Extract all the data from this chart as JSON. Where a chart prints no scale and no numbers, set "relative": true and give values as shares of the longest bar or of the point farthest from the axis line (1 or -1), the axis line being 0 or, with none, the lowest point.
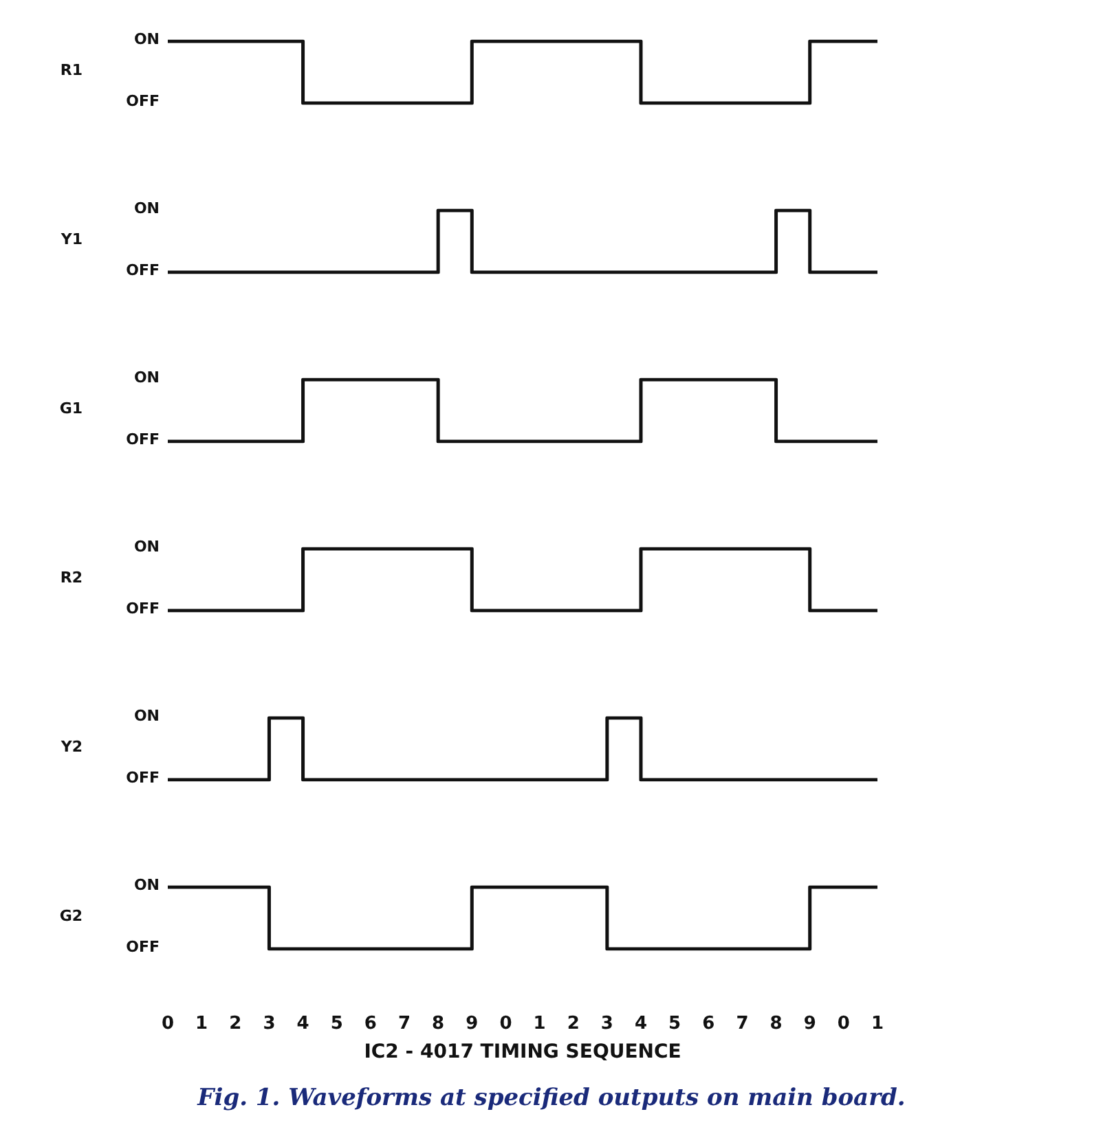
{
  "chart_data": [
    {
      "type": "step",
      "relative": true,
      "ylabel": "R1",
      "categories": [
        "0",
        "1",
        "2",
        "3",
        "4",
        "5",
        "6",
        "7",
        "8",
        "9",
        "0",
        "1",
        "2",
        "3",
        "4",
        "5",
        "6",
        "7",
        "8",
        "9",
        "0",
        "1"
      ],
      "tick_labels": false,
      "annotations": [
        "ON",
        "OFF"
      ],
      "series": [
        {
          "color": "#111111",
          "values": [
            1,
            1,
            1,
            1,
            0,
            0,
            0,
            0,
            0,
            1,
            1,
            1,
            1,
            1,
            0,
            0,
            0,
            0,
            0,
            1,
            1,
            1
          ]
        }
      ]
    },
    {
      "type": "step",
      "relative": true,
      "ylabel": "Y1",
      "categories": [
        "0",
        "1",
        "2",
        "3",
        "4",
        "5",
        "6",
        "7",
        "8",
        "9",
        "0",
        "1",
        "2",
        "3",
        "4",
        "5",
        "6",
        "7",
        "8",
        "9",
        "0",
        "1"
      ],
      "tick_labels": false,
      "annotations": [
        "ON",
        "OFF"
      ],
      "series": [
        {
          "color": "#111111",
          "values": [
            0,
            0,
            0,
            0,
            0,
            0,
            0,
            0,
            1,
            0,
            0,
            0,
            0,
            0,
            0,
            0,
            0,
            0,
            1,
            0,
            0,
            0
          ]
        }
      ]
    },
    {
      "type": "step",
      "relative": true,
      "ylabel": "G1",
      "categories": [
        "0",
        "1",
        "2",
        "3",
        "4",
        "5",
        "6",
        "7",
        "8",
        "9",
        "0",
        "1",
        "2",
        "3",
        "4",
        "5",
        "6",
        "7",
        "8",
        "9",
        "0",
        "1"
      ],
      "tick_labels": false,
      "annotations": [
        "ON",
        "OFF"
      ],
      "series": [
        {
          "color": "#111111",
          "values": [
            0,
            0,
            0,
            0,
            1,
            1,
            1,
            1,
            0,
            0,
            0,
            0,
            0,
            0,
            1,
            1,
            1,
            1,
            0,
            0,
            0,
            0
          ]
        }
      ]
    },
    {
      "type": "step",
      "relative": true,
      "ylabel": "R2",
      "categories": [
        "0",
        "1",
        "2",
        "3",
        "4",
        "5",
        "6",
        "7",
        "8",
        "9",
        "0",
        "1",
        "2",
        "3",
        "4",
        "5",
        "6",
        "7",
        "8",
        "9",
        "0",
        "1"
      ],
      "tick_labels": false,
      "annotations": [
        "ON",
        "OFF"
      ],
      "series": [
        {
          "color": "#111111",
          "values": [
            0,
            0,
            0,
            0,
            1,
            1,
            1,
            1,
            1,
            0,
            0,
            0,
            0,
            0,
            1,
            1,
            1,
            1,
            1,
            0,
            0,
            0
          ]
        }
      ]
    },
    {
      "type": "step",
      "relative": true,
      "ylabel": "Y2",
      "categories": [
        "0",
        "1",
        "2",
        "3",
        "4",
        "5",
        "6",
        "7",
        "8",
        "9",
        "0",
        "1",
        "2",
        "3",
        "4",
        "5",
        "6",
        "7",
        "8",
        "9",
        "0",
        "1"
      ],
      "tick_labels": false,
      "annotations": [
        "ON",
        "OFF"
      ],
      "series": [
        {
          "color": "#111111",
          "values": [
            0,
            0,
            0,
            1,
            0,
            0,
            0,
            0,
            0,
            0,
            0,
            0,
            0,
            1,
            0,
            0,
            0,
            0,
            0,
            0,
            0,
            0
          ]
        }
      ]
    },
    {
      "type": "step",
      "relative": true,
      "ylabel": "G2",
      "xlabel": "IC2 - 4017 TIMING SEQUENCE",
      "categories": [
        "0",
        "1",
        "2",
        "3",
        "4",
        "5",
        "6",
        "7",
        "8",
        "9",
        "0",
        "1",
        "2",
        "3",
        "4",
        "5",
        "6",
        "7",
        "8",
        "9",
        "0",
        "1"
      ],
      "tick_labels": "x",
      "annotations": [
        "ON",
        "OFF",
        "Fig. 1. Waveforms at specified outputs on main board."
      ],
      "series": [
        {
          "color": "#111111",
          "values": [
            1,
            1,
            1,
            0,
            0,
            0,
            0,
            0,
            0,
            1,
            1,
            1,
            1,
            0,
            0,
            0,
            0,
            0,
            0,
            1,
            1,
            1
          ]
        }
      ]
    }
  ]
}
